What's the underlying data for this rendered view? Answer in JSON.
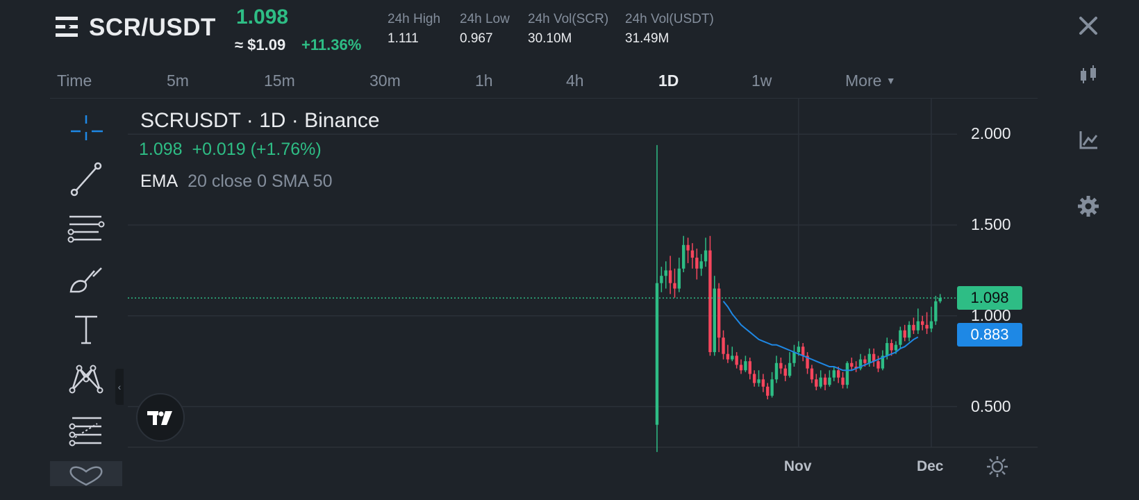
{
  "header": {
    "pair": "SCR/USDT",
    "last_price": "1.098",
    "approx_usd": "≈ $1.09",
    "change_pct": "+11.36%",
    "stats": [
      {
        "label": "24h High",
        "value": "1.111"
      },
      {
        "label": "24h Low",
        "value": "0.967"
      },
      {
        "label": "24h Vol(SCR)",
        "value": "30.10M"
      },
      {
        "label": "24h Vol(USDT)",
        "value": "31.49M"
      }
    ]
  },
  "timeframes": {
    "items": [
      "Time",
      "5m",
      "15m",
      "30m",
      "1h",
      "4h",
      "1D",
      "1w",
      "More"
    ],
    "active": "1D"
  },
  "drawing_tools": [
    "crosshair-icon",
    "trend-line-icon",
    "horizontal-lines-icon",
    "brush-icon",
    "text-icon",
    "pattern-icon",
    "fib-icon",
    "heart-icon"
  ],
  "right_toolbar": [
    "close-icon",
    "candlestick-icon",
    "indicator-icon",
    "gear-icon"
  ],
  "legend": {
    "title": "SCRUSDT · 1D · Binance",
    "price": "1.098",
    "change": "+0.019 (+1.76%)",
    "indicator_name": "EMA",
    "indicator_params": "20 close 0 SMA 50"
  },
  "price_tags": {
    "last": "1.098",
    "ema": "0.883"
  },
  "colors": {
    "up": "#2ebd85",
    "down": "#f6465d",
    "ema": "#1e88e5",
    "accent_blue": "#1e88e5",
    "bg": "#1e2329"
  },
  "chart_data": {
    "type": "candlestick",
    "ylim": [
      0.2,
      2.15
    ],
    "y_ticks": [
      "2.000",
      "1.500",
      "1.000",
      "0.500"
    ],
    "y_tick_values": [
      2.0,
      1.5,
      1.0,
      0.5
    ],
    "x_ticks": [
      "Nov",
      "Dec"
    ],
    "x_tick_days": [
      32,
      62
    ],
    "grid": true,
    "series": [
      {
        "name": "SCRUSDT",
        "kind": "ohlc",
        "ohlc": [
          [
            0.4,
            1.18,
            1.94,
            0.25
          ],
          [
            1.18,
            1.22,
            1.27,
            1.13
          ],
          [
            1.22,
            1.25,
            1.3,
            1.15
          ],
          [
            1.25,
            1.18,
            1.33,
            1.12
          ],
          [
            1.18,
            1.15,
            1.26,
            1.1
          ],
          [
            1.15,
            1.26,
            1.32,
            1.13
          ],
          [
            1.26,
            1.39,
            1.44,
            1.24
          ],
          [
            1.39,
            1.36,
            1.43,
            1.29
          ],
          [
            1.36,
            1.32,
            1.4,
            1.26
          ],
          [
            1.32,
            1.26,
            1.37,
            1.2
          ],
          [
            1.26,
            1.3,
            1.34,
            1.22
          ],
          [
            1.3,
            1.36,
            1.43,
            1.27
          ],
          [
            1.36,
            0.8,
            1.44,
            0.78
          ],
          [
            0.8,
            1.15,
            1.22,
            0.78
          ],
          [
            1.15,
            0.88,
            1.18,
            0.8
          ],
          [
            0.88,
            0.79,
            0.92,
            0.76
          ],
          [
            0.79,
            0.76,
            0.84,
            0.74
          ],
          [
            0.76,
            0.78,
            0.83,
            0.75
          ],
          [
            0.78,
            0.73,
            0.8,
            0.71
          ],
          [
            0.73,
            0.7,
            0.76,
            0.68
          ],
          [
            0.7,
            0.75,
            0.78,
            0.69
          ],
          [
            0.75,
            0.68,
            0.77,
            0.65
          ],
          [
            0.68,
            0.63,
            0.7,
            0.61
          ],
          [
            0.63,
            0.65,
            0.7,
            0.61
          ],
          [
            0.65,
            0.61,
            0.68,
            0.58
          ],
          [
            0.61,
            0.56,
            0.63,
            0.54
          ],
          [
            0.56,
            0.65,
            0.69,
            0.55
          ],
          [
            0.65,
            0.74,
            0.78,
            0.63
          ],
          [
            0.74,
            0.71,
            0.77,
            0.68
          ],
          [
            0.71,
            0.67,
            0.73,
            0.64
          ],
          [
            0.67,
            0.74,
            0.8,
            0.66
          ],
          [
            0.74,
            0.8,
            0.84,
            0.72
          ],
          [
            0.8,
            0.83,
            0.86,
            0.78
          ],
          [
            0.83,
            0.78,
            0.85,
            0.75
          ],
          [
            0.78,
            0.71,
            0.8,
            0.68
          ],
          [
            0.71,
            0.65,
            0.73,
            0.63
          ],
          [
            0.65,
            0.61,
            0.68,
            0.59
          ],
          [
            0.61,
            0.66,
            0.7,
            0.6
          ],
          [
            0.66,
            0.62,
            0.68,
            0.59
          ],
          [
            0.62,
            0.66,
            0.7,
            0.61
          ],
          [
            0.66,
            0.7,
            0.72,
            0.64
          ],
          [
            0.7,
            0.66,
            0.72,
            0.63
          ],
          [
            0.66,
            0.62,
            0.69,
            0.6
          ],
          [
            0.62,
            0.74,
            0.75,
            0.6
          ],
          [
            0.74,
            0.72,
            0.77,
            0.7
          ],
          [
            0.72,
            0.71,
            0.75,
            0.69
          ],
          [
            0.71,
            0.76,
            0.79,
            0.7
          ],
          [
            0.76,
            0.74,
            0.78,
            0.72
          ],
          [
            0.74,
            0.79,
            0.82,
            0.72
          ],
          [
            0.79,
            0.75,
            0.82,
            0.72
          ],
          [
            0.75,
            0.71,
            0.78,
            0.69
          ],
          [
            0.71,
            0.78,
            0.81,
            0.7
          ],
          [
            0.78,
            0.85,
            0.88,
            0.76
          ],
          [
            0.85,
            0.81,
            0.87,
            0.78
          ],
          [
            0.81,
            0.84,
            0.86,
            0.79
          ],
          [
            0.84,
            0.92,
            0.94,
            0.82
          ],
          [
            0.92,
            0.88,
            0.95,
            0.86
          ],
          [
            0.88,
            0.95,
            0.97,
            0.86
          ],
          [
            0.95,
            0.92,
            0.99,
            0.9
          ],
          [
            0.92,
            0.97,
            1.04,
            0.9
          ],
          [
            0.97,
            0.95,
            1.0,
            0.92
          ],
          [
            0.95,
            0.93,
            1.02,
            0.9
          ],
          [
            0.93,
            0.97,
            1.05,
            0.91
          ],
          [
            0.97,
            1.08,
            1.11,
            0.95
          ],
          [
            1.08,
            1.098,
            1.12,
            1.07
          ]
        ]
      },
      {
        "name": "EMA",
        "kind": "line",
        "start_day": 15,
        "values": [
          1.08,
          1.05,
          1.01,
          0.98,
          0.95,
          0.93,
          0.91,
          0.89,
          0.87,
          0.86,
          0.85,
          0.84,
          0.84,
          0.83,
          0.82,
          0.81,
          0.8,
          0.79,
          0.78,
          0.77,
          0.76,
          0.75,
          0.74,
          0.73,
          0.72,
          0.72,
          0.71,
          0.7,
          0.7,
          0.7,
          0.71,
          0.72,
          0.73,
          0.74,
          0.75,
          0.76,
          0.77,
          0.78,
          0.79,
          0.8,
          0.82,
          0.83,
          0.85,
          0.87,
          0.883
        ]
      }
    ],
    "last_price_line": 1.098
  }
}
